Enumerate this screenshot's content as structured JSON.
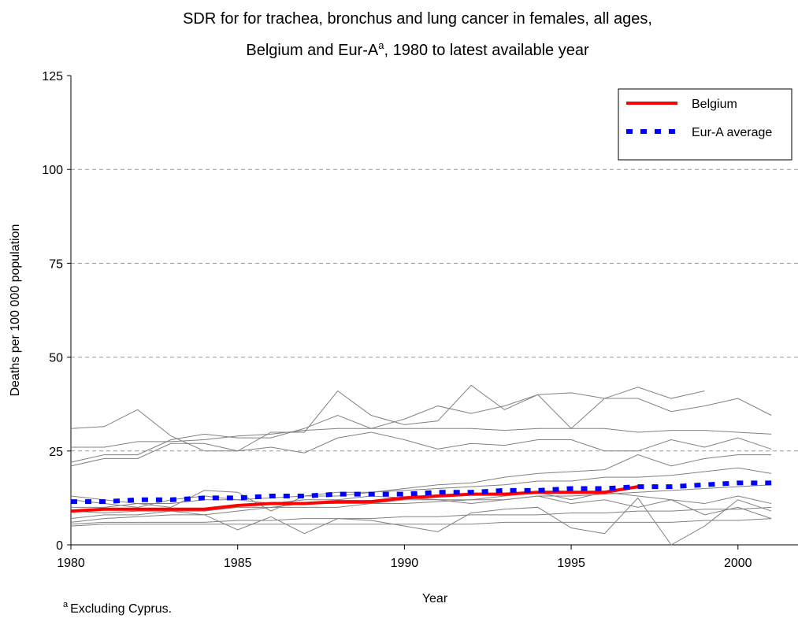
{
  "chart_data": {
    "type": "line",
    "title_line1": "SDR for for trachea, bronchus and lung cancer in females, all ages,",
    "title_line2_start": "Belgium and Eur-A",
    "title_superscript": "a",
    "title_line2_end": ", 1980 to latest available year",
    "x_label": "Year",
    "y_label": "Deaths per 100 000 population",
    "footnote_marker": "a",
    "footnote": "Excluding Cyprus.",
    "x": [
      1980,
      1981,
      1982,
      1983,
      1984,
      1985,
      1986,
      1987,
      1988,
      1989,
      1990,
      1991,
      1992,
      1993,
      1994,
      1995,
      1996,
      1997,
      1998,
      1999,
      2000,
      2001
    ],
    "xlim": [
      1980,
      2001.8
    ],
    "xticks": [
      1980,
      1985,
      1990,
      1995,
      2000
    ],
    "ylim": [
      0,
      125
    ],
    "yticks": [
      0,
      25,
      50,
      75,
      100,
      125
    ],
    "grid": true,
    "legend_position": "upper right",
    "series": [
      {
        "color": "#808080",
        "values": [
          31,
          31.5,
          36,
          29,
          25,
          25,
          30,
          30,
          41,
          34.5,
          32,
          33,
          42.5,
          36,
          40,
          40.5,
          39,
          42,
          39,
          41,
          null,
          null
        ]
      },
      {
        "color": "#808080",
        "values": [
          22,
          24,
          24,
          28,
          29.5,
          28.5,
          28.5,
          31,
          34.5,
          31,
          33.5,
          37,
          35,
          37,
          40,
          31,
          39,
          39,
          35.5,
          37,
          39,
          34.5
        ]
      },
      {
        "color": "#808080",
        "values": [
          26,
          26,
          27.5,
          27.5,
          28,
          29,
          29.5,
          30.5,
          31,
          31,
          31,
          31,
          31,
          30.5,
          31,
          31,
          31,
          30,
          30.5,
          30.5,
          30,
          29.5
        ]
      },
      {
        "color": "#808080",
        "values": [
          21,
          23,
          23,
          27,
          27,
          25,
          26,
          24.5,
          28.5,
          30,
          28,
          25.5,
          27,
          26.5,
          28,
          28,
          25,
          25,
          28,
          26,
          28.5,
          25.5
        ]
      },
      {
        "color": "#808080",
        "values": [
          13,
          12,
          11,
          10,
          14.5,
          14,
          9,
          13,
          14,
          14,
          15,
          16,
          16.5,
          18,
          19,
          19.5,
          20,
          24,
          21,
          23,
          24,
          24
        ]
      },
      {
        "color": "#808080",
        "values": [
          10,
          10,
          11,
          11,
          12,
          12,
          12.5,
          13,
          13,
          14,
          14.5,
          15,
          15.5,
          16,
          17,
          17,
          18,
          18,
          18.5,
          19.5,
          20.5,
          19
        ]
      },
      {
        "color": "#808080",
        "values": [
          6,
          7,
          7.5,
          8,
          8,
          4,
          7.5,
          3,
          7,
          6.5,
          5,
          3.5,
          8.5,
          9.5,
          10,
          4.5,
          3,
          12.5,
          0,
          5,
          12,
          9
        ]
      },
      {
        "color": "#808080",
        "values": [
          5.5,
          6,
          6,
          6,
          6,
          6.5,
          6.5,
          7,
          7,
          7,
          7.5,
          7.5,
          8,
          8,
          8,
          8.5,
          8.5,
          9,
          9,
          9.5,
          9.5,
          10
        ]
      },
      {
        "color": "#808080",
        "values": [
          12,
          11,
          10,
          12,
          13,
          12,
          11,
          12,
          12,
          13,
          12.5,
          12,
          12,
          13,
          14,
          12,
          14,
          13,
          12,
          11,
          13,
          11
        ]
      },
      {
        "color": "#808080",
        "values": [
          9,
          8.5,
          9,
          9,
          8,
          9,
          10,
          10,
          10,
          11,
          11,
          11.5,
          12,
          12,
          13,
          13,
          13.5,
          14,
          14.5,
          15,
          15.5,
          16
        ]
      },
      {
        "color": "#808080",
        "values": [
          5,
          5.5,
          5.5,
          5.5,
          5.5,
          5.5,
          5.5,
          5.5,
          5.5,
          5.5,
          5.5,
          5.5,
          5.5,
          6,
          6,
          6,
          6,
          6,
          6,
          6.5,
          6.5,
          7
        ]
      },
      {
        "color": "#808080",
        "values": [
          7,
          8,
          8,
          9,
          9,
          10,
          10,
          11,
          11,
          11,
          12,
          12,
          11,
          12,
          13,
          11,
          12,
          10,
          12,
          8,
          10,
          7
        ]
      },
      {
        "name": "Belgium",
        "color": "#ff0000",
        "values": [
          9,
          9.5,
          9.5,
          9.5,
          9.5,
          10.5,
          11,
          11,
          11.5,
          11.5,
          12.5,
          13,
          13.5,
          13.5,
          14,
          14,
          14,
          15.5,
          null,
          null,
          null,
          null
        ]
      },
      {
        "name": "Eur-A average",
        "color": "#0000ff",
        "dashed": true,
        "values": [
          11.5,
          11.5,
          12,
          12,
          12.5,
          12.5,
          13,
          13,
          13.5,
          13.5,
          13.5,
          14,
          14,
          14.5,
          14.5,
          15,
          15,
          15.5,
          15.5,
          16,
          16.5,
          16.5
        ]
      }
    ]
  }
}
